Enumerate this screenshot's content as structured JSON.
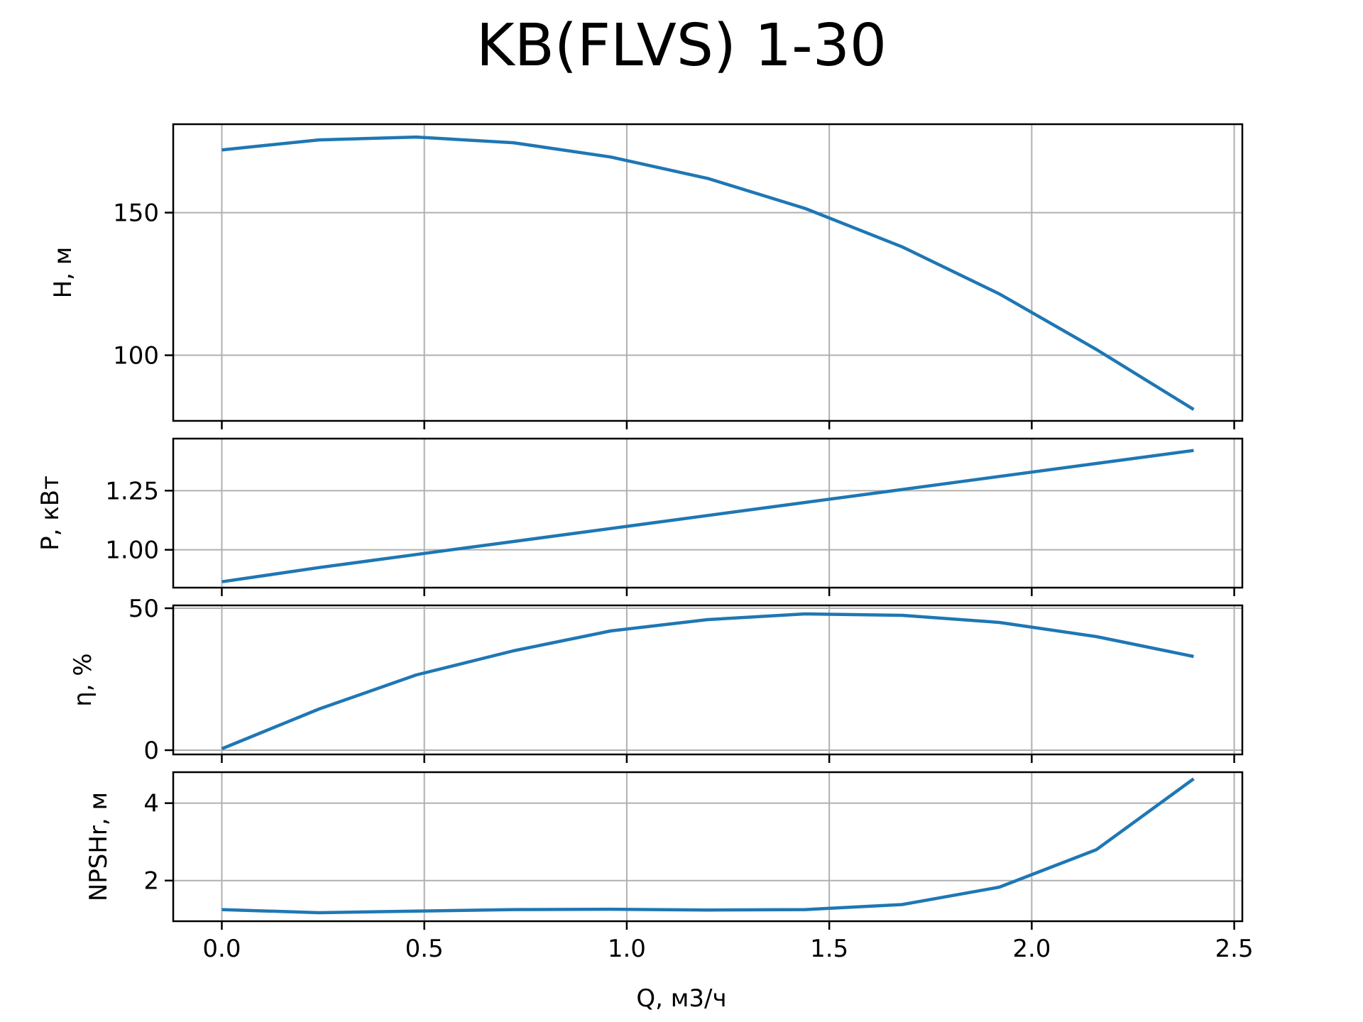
{
  "chart_data": {
    "type": "line",
    "title": "KB(FLVS) 1-30",
    "xlabel": "Q, м3/ч",
    "x": [
      0.0,
      0.24,
      0.48,
      0.72,
      0.96,
      1.2,
      1.44,
      1.68,
      1.92,
      2.16,
      2.4
    ],
    "xlim": [
      -0.12,
      2.52
    ],
    "xticks": [
      0.0,
      0.5,
      1.0,
      1.5,
      2.0,
      2.5
    ],
    "xtick_labels": [
      "0.0",
      "0.5",
      "1.0",
      "1.5",
      "2.0",
      "2.5"
    ],
    "grid": true,
    "panels": [
      {
        "ylabel": "H, м",
        "ylim": [
          77,
          181
        ],
        "yticks": [
          100,
          150
        ],
        "ytick_labels": [
          "100",
          "150"
        ],
        "values": [
          172,
          175.5,
          176.5,
          174.5,
          169.5,
          162,
          151.5,
          138,
          121.5,
          102,
          81
        ]
      },
      {
        "ylabel": "P, кВт",
        "ylim": [
          0.84,
          1.47
        ],
        "yticks": [
          1.0,
          1.25
        ],
        "ytick_labels": [
          "1.00",
          "1.25"
        ],
        "values": [
          0.865,
          0.925,
          0.98,
          1.035,
          1.09,
          1.145,
          1.2,
          1.255,
          1.31,
          1.365,
          1.42
        ]
      },
      {
        "ylabel": "η, %",
        "ylim": [
          -1.5,
          51
        ],
        "yticks": [
          0,
          50
        ],
        "ytick_labels": [
          "0",
          "50"
        ],
        "values": [
          0.5,
          14.5,
          26.5,
          35,
          42,
          46,
          48,
          47.5,
          45,
          40,
          33
        ]
      },
      {
        "ylabel": "NPSHr, м",
        "ylim": [
          0.95,
          4.8
        ],
        "yticks": [
          2,
          4
        ],
        "ytick_labels": [
          "2",
          "4"
        ],
        "values": [
          1.25,
          1.17,
          1.21,
          1.25,
          1.26,
          1.24,
          1.25,
          1.38,
          1.83,
          2.8,
          4.63
        ]
      }
    ]
  }
}
